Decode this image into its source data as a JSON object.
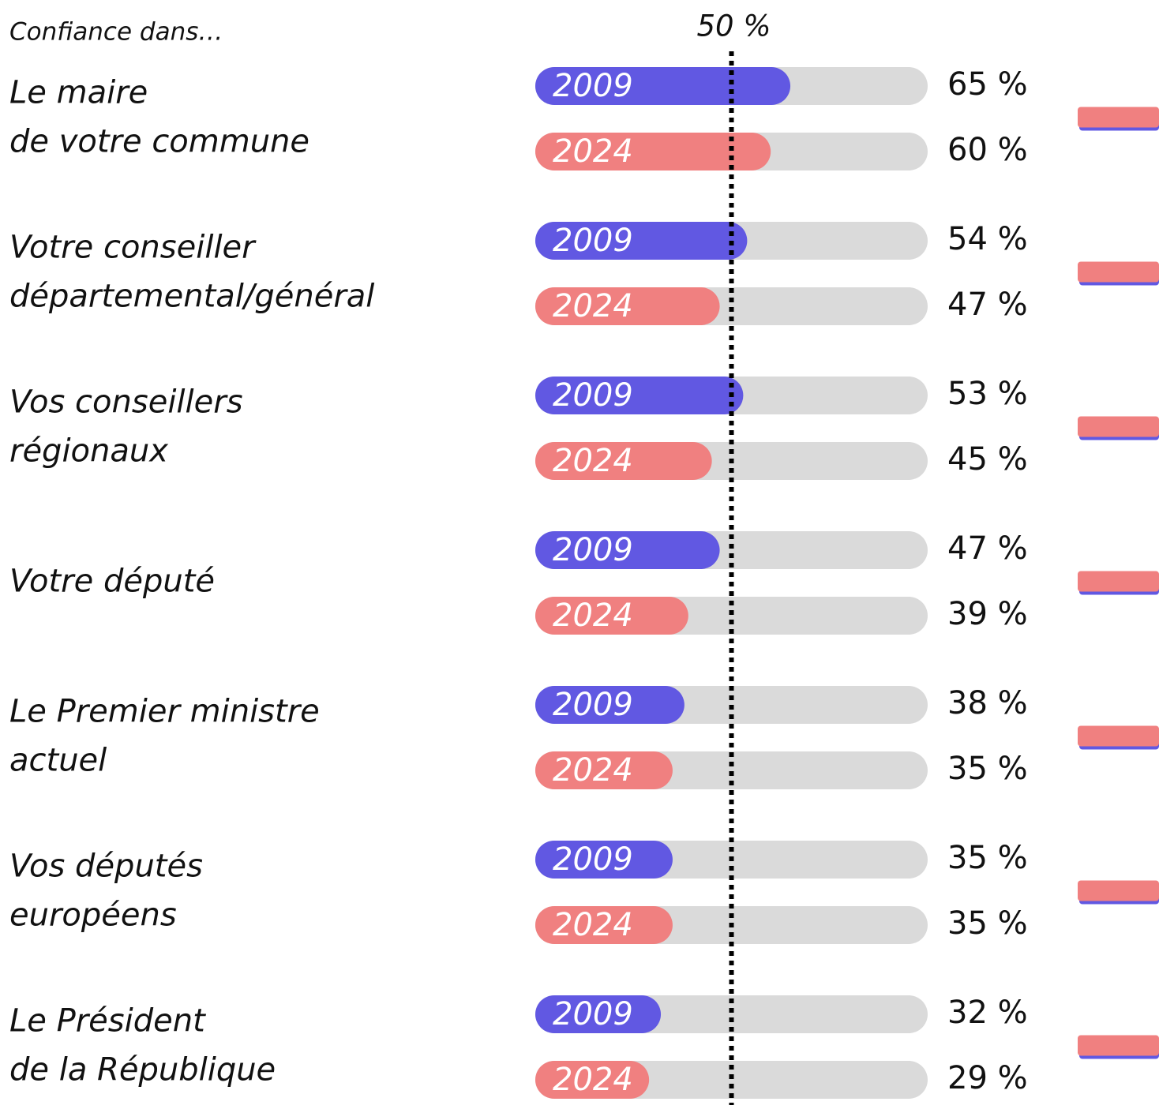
{
  "chart_data": {
    "type": "bar",
    "orientation": "horizontal",
    "subtitle": "Confiance dans…",
    "categories": [
      [
        "Le maire",
        "de votre commune"
      ],
      [
        "Votre conseiller",
        "départemental/général"
      ],
      [
        "Vos conseillers",
        "régionaux"
      ],
      [
        "Votre député"
      ],
      [
        "Le Premier ministre",
        "actuel"
      ],
      [
        "Vos députés",
        "européens"
      ],
      [
        "Le Président",
        "de la République"
      ]
    ],
    "series": [
      {
        "name": "2009",
        "color": "#6158e2",
        "values": [
          65,
          54,
          53,
          47,
          38,
          35,
          32
        ],
        "value_labels": [
          "65 %",
          "54 %",
          "53 %",
          "47 %",
          "38 %",
          "35 %",
          "32 %"
        ]
      },
      {
        "name": "2024",
        "color": "#f08080",
        "values": [
          60,
          47,
          45,
          39,
          35,
          35,
          29
        ],
        "value_labels": [
          "60 %",
          "47 %",
          "45 %",
          "39 %",
          "35 %",
          "35 %",
          "29 %"
        ]
      }
    ],
    "xlim": [
      0,
      100
    ],
    "track_color": "#dadada",
    "reference_line": {
      "value": 50,
      "label": "50 %"
    }
  }
}
